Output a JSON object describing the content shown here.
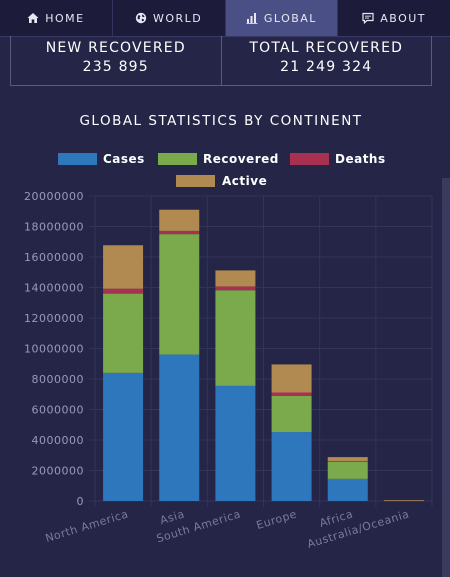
{
  "nav": {
    "items": [
      {
        "label": "HOME",
        "icon": "home-icon"
      },
      {
        "label": "WORLD",
        "icon": "globe-icon"
      },
      {
        "label": "GLOBAL",
        "icon": "bar-chart-icon",
        "active": true
      },
      {
        "label": "ABOUT",
        "icon": "comment-icon"
      }
    ]
  },
  "stats": {
    "new_recovered_label": "NEW RECOVERED",
    "new_recovered_value": "235 895",
    "total_recovered_label": "TOTAL RECOVERED",
    "total_recovered_value": "21 249 324"
  },
  "chart_title": "GLOBAL STATISTICS BY CONTINENT",
  "colors": {
    "cases": "#2e77bc",
    "recovered": "#7aaa4c",
    "deaths": "#a83050",
    "active": "#b08a50"
  },
  "chart_data": {
    "type": "bar",
    "stacked": true,
    "categories": [
      "North America",
      "Asia",
      "South America",
      "Europe",
      "Africa",
      "Australia/Oceania"
    ],
    "series": [
      {
        "name": "Cases",
        "values": [
          8400000,
          9600000,
          7550000,
          4520000,
          1450000,
          27000
        ]
      },
      {
        "name": "Recovered",
        "values": [
          5200000,
          7900000,
          6270000,
          2380000,
          1130000,
          20000
        ]
      },
      {
        "name": "Deaths",
        "values": [
          320000,
          210000,
          250000,
          215000,
          40000,
          1000
        ]
      },
      {
        "name": "Active",
        "values": [
          2850000,
          1390000,
          1050000,
          1840000,
          260000,
          6000
        ]
      }
    ],
    "ylim": [
      0,
      20000000
    ],
    "yticks": [
      "0",
      "2000000",
      "4000000",
      "6000000",
      "8000000",
      "10000000",
      "12000000",
      "14000000",
      "16000000",
      "18000000",
      "20000000"
    ],
    "grid": true,
    "legend": "top"
  }
}
